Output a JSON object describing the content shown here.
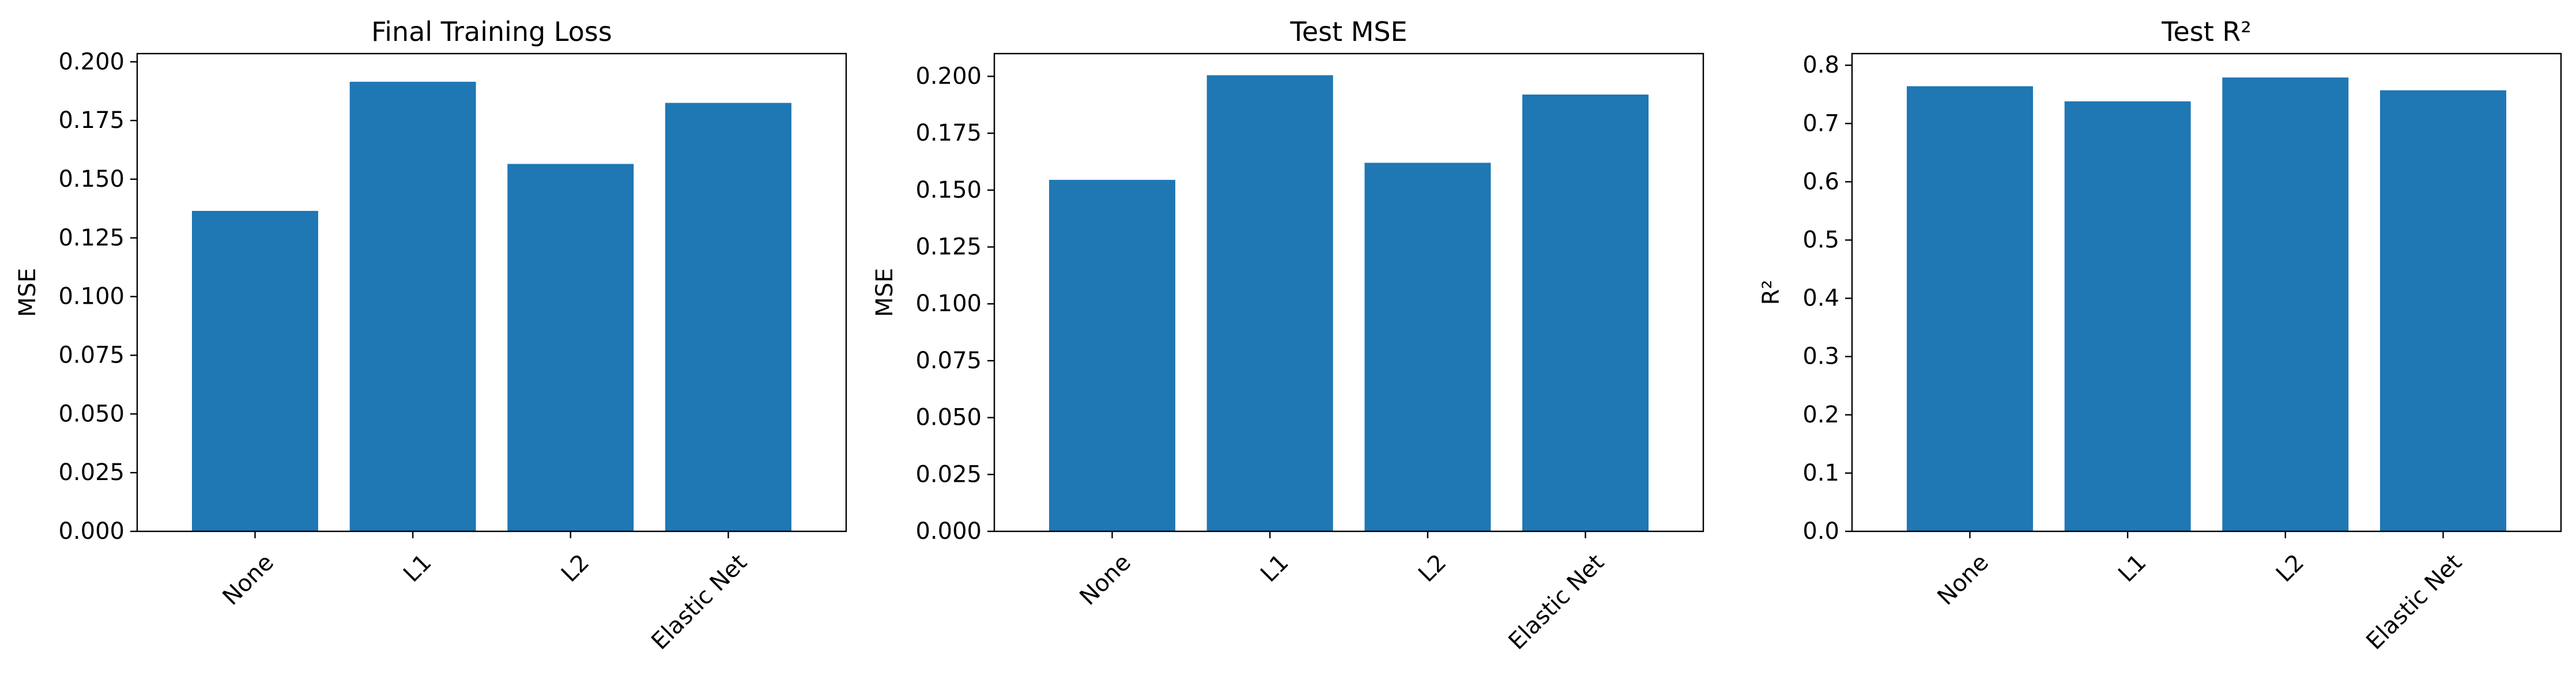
{
  "chart_data": [
    {
      "type": "bar",
      "title": "Final Training Loss",
      "xlabel": "",
      "ylabel": "MSE",
      "categories": [
        "None",
        "L1",
        "L2",
        "Elastic Net"
      ],
      "values": [
        0.1365,
        0.1915,
        0.1565,
        0.1825
      ],
      "ylim": [
        0,
        0.2035
      ],
      "yticks": [
        0.0,
        0.025,
        0.05,
        0.075,
        0.1,
        0.125,
        0.15,
        0.175,
        0.2
      ],
      "ytick_labels": [
        "0.000",
        "0.025",
        "0.050",
        "0.075",
        "0.100",
        "0.125",
        "0.150",
        "0.175",
        "0.200"
      ],
      "grid": false,
      "bar_color": "#1f77b4"
    },
    {
      "type": "bar",
      "title": "Test MSE",
      "xlabel": "",
      "ylabel": "MSE",
      "categories": [
        "None",
        "L1",
        "L2",
        "Elastic Net"
      ],
      "values": [
        0.1545,
        0.2005,
        0.162,
        0.192
      ],
      "ylim": [
        0,
        0.21
      ],
      "yticks": [
        0.0,
        0.025,
        0.05,
        0.075,
        0.1,
        0.125,
        0.15,
        0.175,
        0.2
      ],
      "ytick_labels": [
        "0.000",
        "0.025",
        "0.050",
        "0.075",
        "0.100",
        "0.125",
        "0.150",
        "0.175",
        "0.200"
      ],
      "grid": false,
      "bar_color": "#1f77b4"
    },
    {
      "type": "bar",
      "title": "Test R²",
      "xlabel": "",
      "ylabel": "R²",
      "categories": [
        "None",
        "L1",
        "L2",
        "Elastic Net"
      ],
      "values": [
        0.764,
        0.738,
        0.779,
        0.757
      ],
      "ylim": [
        0,
        0.82
      ],
      "yticks": [
        0.0,
        0.1,
        0.2,
        0.3,
        0.4,
        0.5,
        0.6,
        0.7,
        0.8
      ],
      "ytick_labels": [
        "0.0",
        "0.1",
        "0.2",
        "0.3",
        "0.4",
        "0.5",
        "0.6",
        "0.7",
        "0.8"
      ],
      "grid": false,
      "bar_color": "#1f77b4"
    }
  ]
}
